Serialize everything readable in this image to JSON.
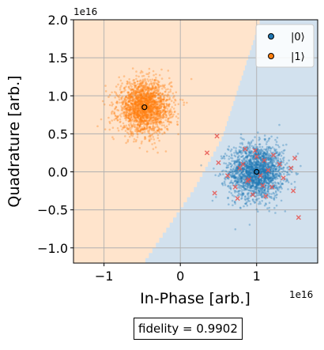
{
  "chart_data": {
    "type": "scatter",
    "xlabel": "In-Phase [arb.]",
    "ylabel": "Quadrature [arb.]",
    "x_offset_label": "1e16",
    "y_offset_label": "1e16",
    "xlim": [
      -1.4,
      1.8
    ],
    "ylim": [
      -1.2,
      2.0
    ],
    "x_ticks": [
      -1,
      0,
      1
    ],
    "x_tick_labels": [
      "−1",
      "0",
      "1"
    ],
    "y_ticks": [
      -1.0,
      -0.5,
      0.0,
      0.5,
      1.0,
      1.5,
      2.0
    ],
    "y_tick_labels": [
      "−1.0",
      "−0.5",
      "0.0",
      "0.5",
      "1.0",
      "1.5",
      "2.0"
    ],
    "grid": true,
    "legend_placement": "top-right",
    "series": [
      {
        "name": "|0⟩",
        "color": "#1f77b4",
        "mean": [
          1.0,
          0.0
        ],
        "spread": [
          0.18,
          0.18
        ],
        "count": 2000,
        "region_color": "#d2e1ee"
      },
      {
        "name": "|1⟩",
        "color": "#ff7f0e",
        "mean": [
          -0.47,
          0.85
        ],
        "spread": [
          0.17,
          0.17
        ],
        "count": 2000,
        "region_color": "#ffe4cc"
      }
    ],
    "decision_boundary": [
      [
        -0.48,
        -1.2
      ],
      [
        0.2,
        -0.2
      ],
      [
        0.55,
        0.45
      ],
      [
        1.05,
        2.0
      ]
    ],
    "misclassified": {
      "color": "#e8544f",
      "marker": "x",
      "points": [
        [
          0.48,
          0.47
        ],
        [
          0.35,
          0.25
        ],
        [
          0.5,
          0.12
        ],
        [
          0.62,
          -0.05
        ],
        [
          0.45,
          -0.28
        ],
        [
          0.72,
          -0.2
        ],
        [
          0.78,
          0.05
        ],
        [
          0.85,
          0.3
        ],
        [
          0.9,
          -0.1
        ],
        [
          0.95,
          -0.3
        ],
        [
          1.0,
          0.2
        ],
        [
          1.05,
          -0.05
        ],
        [
          1.1,
          0.15
        ],
        [
          1.15,
          0.02
        ],
        [
          1.2,
          -0.2
        ],
        [
          1.3,
          0.1
        ],
        [
          1.35,
          -0.08
        ],
        [
          1.45,
          0.05
        ],
        [
          1.5,
          0.18
        ],
        [
          1.48,
          -0.25
        ],
        [
          1.55,
          -0.6
        ],
        [
          0.88,
          -0.12
        ],
        [
          0.98,
          0.28
        ],
        [
          1.08,
          -0.18
        ],
        [
          1.22,
          0.22
        ],
        [
          0.82,
          0.1
        ],
        [
          1.12,
          -0.32
        ],
        [
          0.75,
          -0.35
        ]
      ]
    },
    "means_marker": "black-outlined circle"
  },
  "fidelity": {
    "label": "fidelity = ",
    "value": "0.9902"
  }
}
